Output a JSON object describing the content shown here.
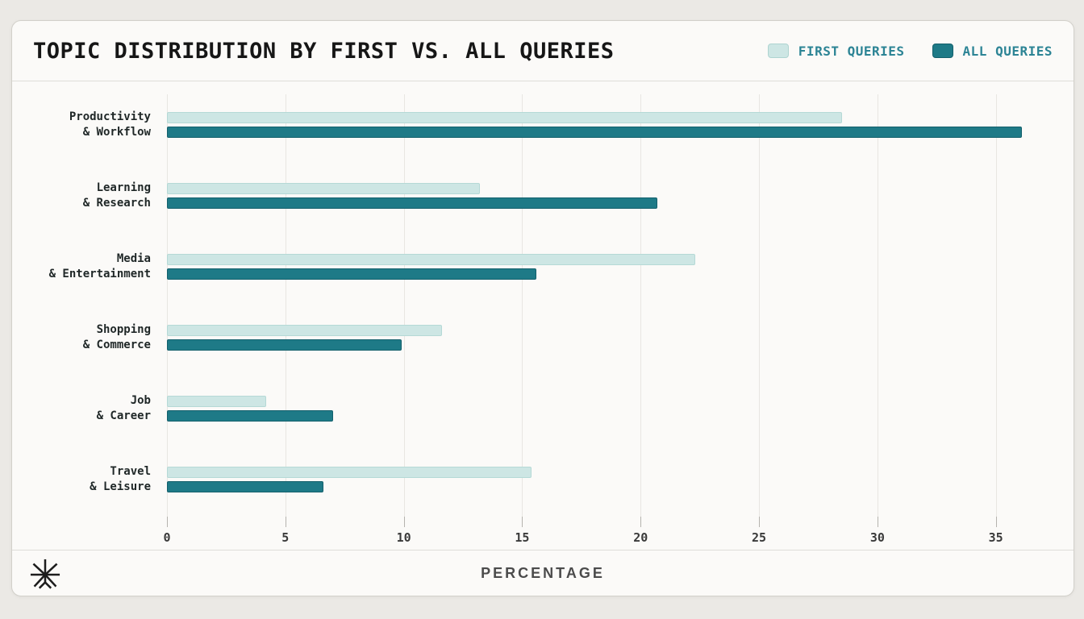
{
  "header": {
    "title": "TOPIC DISTRIBUTION BY FIRST VS. ALL QUERIES"
  },
  "legend": [
    {
      "label": "FIRST QUERIES",
      "color": "#cde6e4",
      "border": "#aed4d1"
    },
    {
      "label": "ALL QUERIES",
      "color": "#1e7a87",
      "border": "#14606c"
    }
  ],
  "footer": {
    "xlabel": "PERCENTAGE",
    "logo": "starburst-icon"
  },
  "colors": {
    "accent_teal_dark": "#1e7a87",
    "accent_teal_light": "#cde6e4",
    "legend_text": "#2c8495",
    "card_bg": "#fbfaf8",
    "page_bg": "#ebe9e5"
  },
  "chart_data": {
    "type": "bar",
    "orientation": "horizontal",
    "title": "TOPIC DISTRIBUTION BY FIRST VS. ALL QUERIES",
    "xlabel": "PERCENTAGE",
    "ylabel": "",
    "grid": true,
    "legend_position": "top-right",
    "categories": [
      [
        "Productivity",
        "& Workflow"
      ],
      [
        "Learning",
        "& Research"
      ],
      [
        "Media",
        "& Entertainment"
      ],
      [
        "Shopping",
        "& Commerce"
      ],
      [
        "Job",
        "& Career"
      ],
      [
        "Travel",
        "& Leisure"
      ]
    ],
    "series": [
      {
        "name": "FIRST QUERIES",
        "color": "#cde6e4",
        "values": [
          28.5,
          13.2,
          22.3,
          11.6,
          4.2,
          15.4
        ]
      },
      {
        "name": "ALL QUERIES",
        "color": "#1e7a87",
        "values": [
          36.1,
          20.7,
          15.6,
          9.9,
          7.0,
          6.6
        ]
      }
    ],
    "x_ticks": [
      0,
      5,
      10,
      15,
      20,
      25,
      30,
      35
    ],
    "x_max": 37.6
  }
}
